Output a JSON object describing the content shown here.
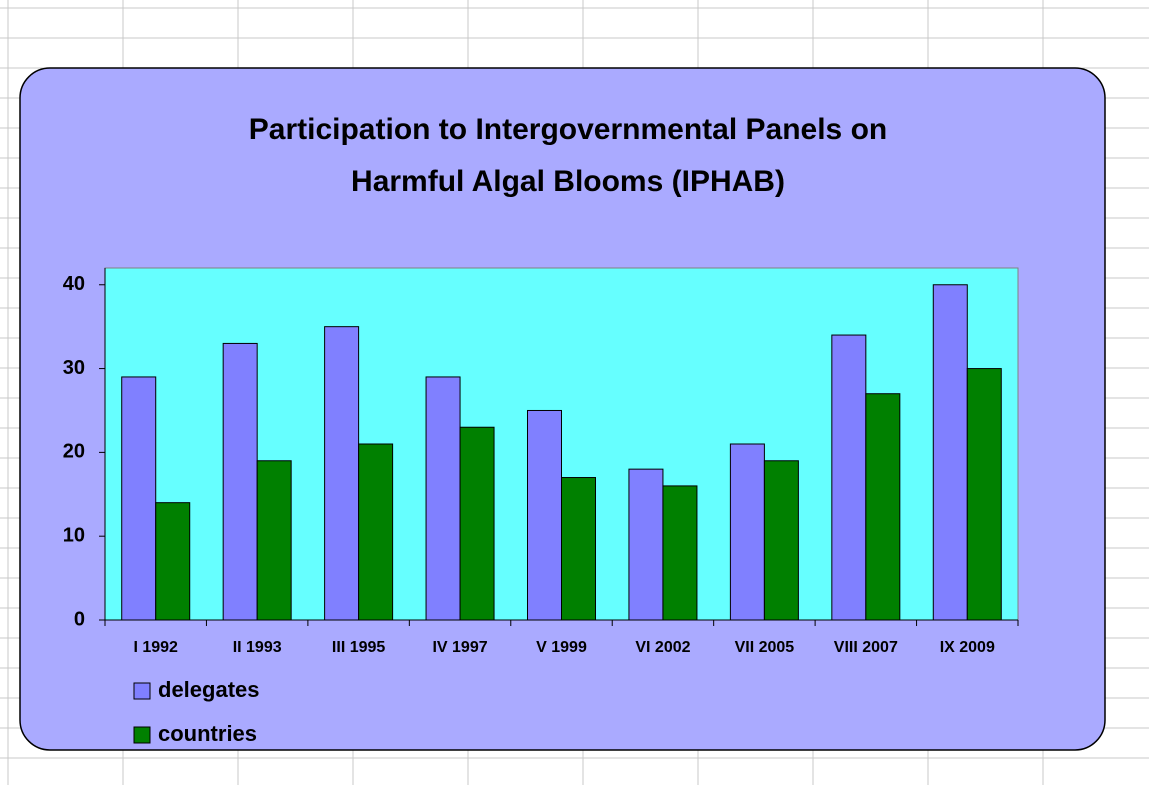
{
  "chart_data": {
    "type": "bar",
    "title": [
      "Participation to Intergovernmental Panels on",
      "Harmful Algal Blooms (IPHAB)"
    ],
    "categories": [
      "I 1992",
      "II 1993",
      "III 1995",
      "IV 1997",
      "V 1999",
      "VI 2002",
      "VII 2005",
      "VIII 2007",
      "IX 2009"
    ],
    "series": [
      {
        "name": "delegates",
        "color": "#8080ff",
        "values": [
          29,
          33,
          35,
          29,
          25,
          18,
          21,
          34,
          40
        ]
      },
      {
        "name": "countries",
        "color": "#008000",
        "values": [
          14,
          19,
          21,
          23,
          17,
          16,
          19,
          27,
          30
        ]
      }
    ],
    "ylim": [
      0,
      42
    ],
    "yticks": [
      0,
      10,
      20,
      30,
      40
    ],
    "grid": false,
    "legend": "bottom-left"
  }
}
